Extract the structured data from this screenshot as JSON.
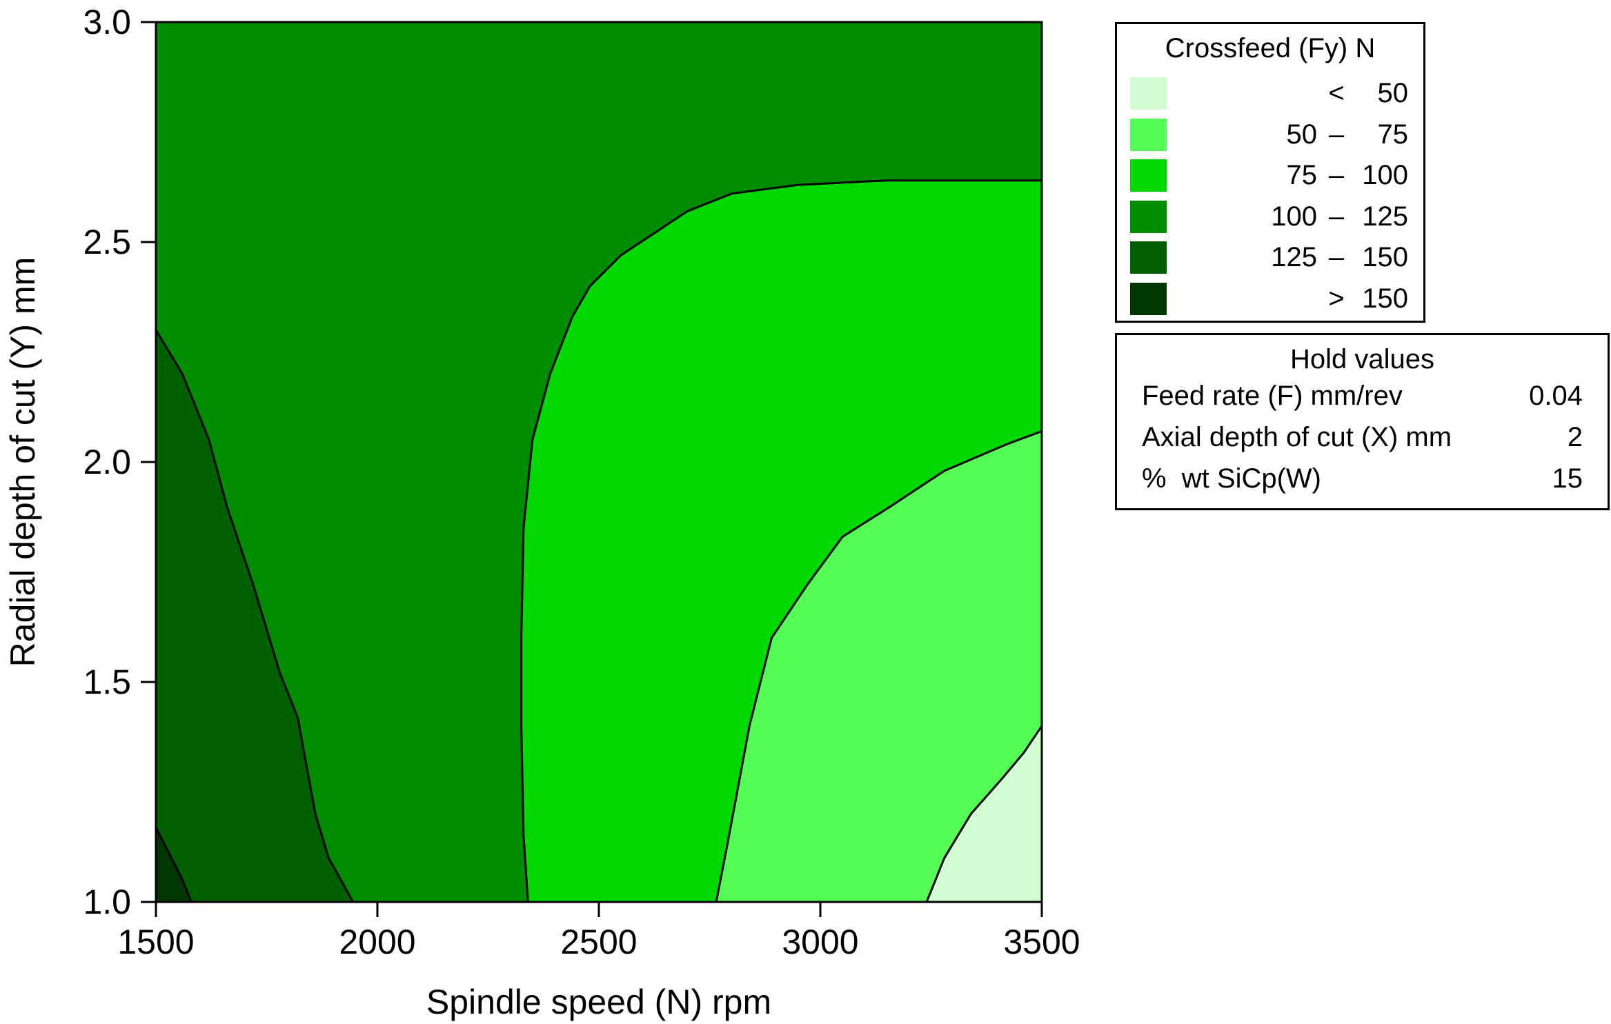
{
  "chart_data": {
    "type": "contour",
    "xlabel": "Spindle speed (N) rpm",
    "ylabel": "Radial depth of cut (Y) mm",
    "xlim": [
      1500,
      3500
    ],
    "ylim": [
      1.0,
      3.0
    ],
    "x_ticks": [
      "1500",
      "2000",
      "2500",
      "3000",
      "3500"
    ],
    "y_ticks": [
      "1.0",
      "1.5",
      "2.0",
      "2.5",
      "3.0"
    ],
    "grid": false,
    "legend_position": "top-right",
    "legend": {
      "title": "Crossfeed (Fy) N",
      "bands": [
        {
          "low": "",
          "op": "<",
          "high": "50",
          "color": "#d2fcd2"
        },
        {
          "low": "50",
          "op": "–",
          "high": "75",
          "color": "#55fc55"
        },
        {
          "low": "75",
          "op": "–",
          "high": "100",
          "color": "#00d800"
        },
        {
          "low": "100",
          "op": "–",
          "high": "125",
          "color": "#008c00"
        },
        {
          "low": "125",
          "op": "–",
          "high": "150",
          "color": "#006000"
        },
        {
          "low": "",
          "op": ">",
          "high": "150",
          "color": "#003600"
        }
      ]
    },
    "hold_values": {
      "title": "Hold values",
      "rows": [
        {
          "name": "Feed rate (F) mm/rev",
          "value": "0.04"
        },
        {
          "name": "Axial depth of cut (X) mm",
          "value": "2"
        },
        {
          "name": "%  wt SiCp(W)",
          "value": "15"
        }
      ]
    },
    "contours": [
      {
        "level": 150,
        "points": [
          [
            1500,
            1.17
          ],
          [
            1530,
            1.11
          ],
          [
            1560,
            1.05
          ],
          [
            1580,
            1.0
          ]
        ]
      },
      {
        "level": 125,
        "points": [
          [
            1500,
            2.3
          ],
          [
            1560,
            2.2
          ],
          [
            1620,
            2.05
          ],
          [
            1660,
            1.9
          ],
          [
            1720,
            1.72
          ],
          [
            1780,
            1.52
          ],
          [
            1820,
            1.42
          ],
          [
            1860,
            1.2
          ],
          [
            1890,
            1.1
          ],
          [
            1945,
            1.0
          ]
        ]
      },
      {
        "level": 100,
        "points": [
          [
            2340,
            1.0
          ],
          [
            2330,
            1.15
          ],
          [
            2325,
            1.4
          ],
          [
            2325,
            1.6
          ],
          [
            2330,
            1.85
          ],
          [
            2350,
            2.05
          ],
          [
            2390,
            2.2
          ],
          [
            2440,
            2.33
          ],
          [
            2480,
            2.4
          ],
          [
            2550,
            2.47
          ],
          [
            2610,
            2.51
          ],
          [
            2700,
            2.57
          ],
          [
            2800,
            2.61
          ],
          [
            2950,
            2.63
          ],
          [
            3150,
            2.64
          ],
          [
            3500,
            2.64
          ]
        ]
      },
      {
        "level": 75,
        "points": [
          [
            2765,
            1.0
          ],
          [
            2790,
            1.13
          ],
          [
            2840,
            1.4
          ],
          [
            2890,
            1.6
          ],
          [
            2970,
            1.72
          ],
          [
            3050,
            1.83
          ],
          [
            3160,
            1.9
          ],
          [
            3280,
            1.98
          ],
          [
            3420,
            2.04
          ],
          [
            3500,
            2.07
          ]
        ]
      },
      {
        "level": 50,
        "points": [
          [
            3240,
            1.0
          ],
          [
            3280,
            1.1
          ],
          [
            3340,
            1.2
          ],
          [
            3410,
            1.28
          ],
          [
            3460,
            1.34
          ],
          [
            3500,
            1.4
          ]
        ]
      }
    ]
  }
}
